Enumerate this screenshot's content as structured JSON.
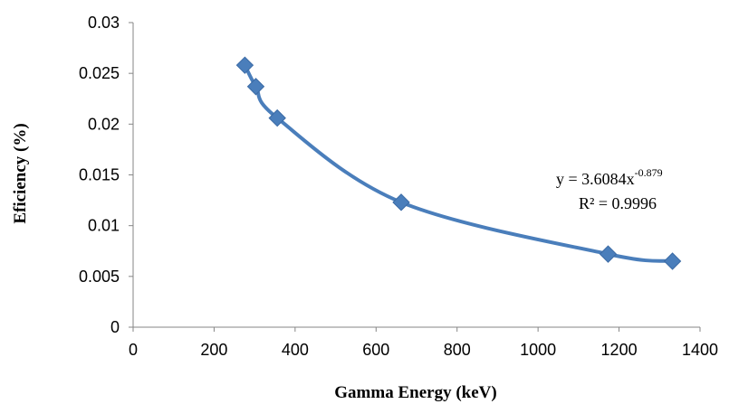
{
  "chart_data": {
    "type": "scatter",
    "title": "",
    "xlabel": "Gamma Energy (keV)",
    "ylabel": "Eficiency  (%)",
    "xlim": [
      0,
      1400
    ],
    "ylim": [
      0,
      0.03
    ],
    "x_ticks": [
      "0",
      "200",
      "400",
      "600",
      "800",
      "1000",
      "1200",
      "1400"
    ],
    "y_ticks": [
      "0",
      "0.005",
      "0.01",
      "0.015",
      "0.02",
      "0.025",
      "0.03"
    ],
    "series": [
      {
        "points": [
          {
            "x": 276,
            "y": 0.0258
          },
          {
            "x": 303,
            "y": 0.0237
          },
          {
            "x": 356,
            "y": 0.0206
          },
          {
            "x": 662,
            "y": 0.0123
          },
          {
            "x": 1173,
            "y": 0.0072
          },
          {
            "x": 1332,
            "y": 0.0065
          }
        ],
        "color": "#4a7ebb",
        "marker": "diamond",
        "smooth_line": true
      }
    ],
    "trendline": {
      "type": "power",
      "coefficient": 3.6084,
      "exponent": -0.879,
      "equation_prefix": "y = 3.6084x",
      "equation_exponent": "-0.879",
      "r_squared_label": "R² = 0.9996"
    },
    "grid": false,
    "legend": "none"
  }
}
